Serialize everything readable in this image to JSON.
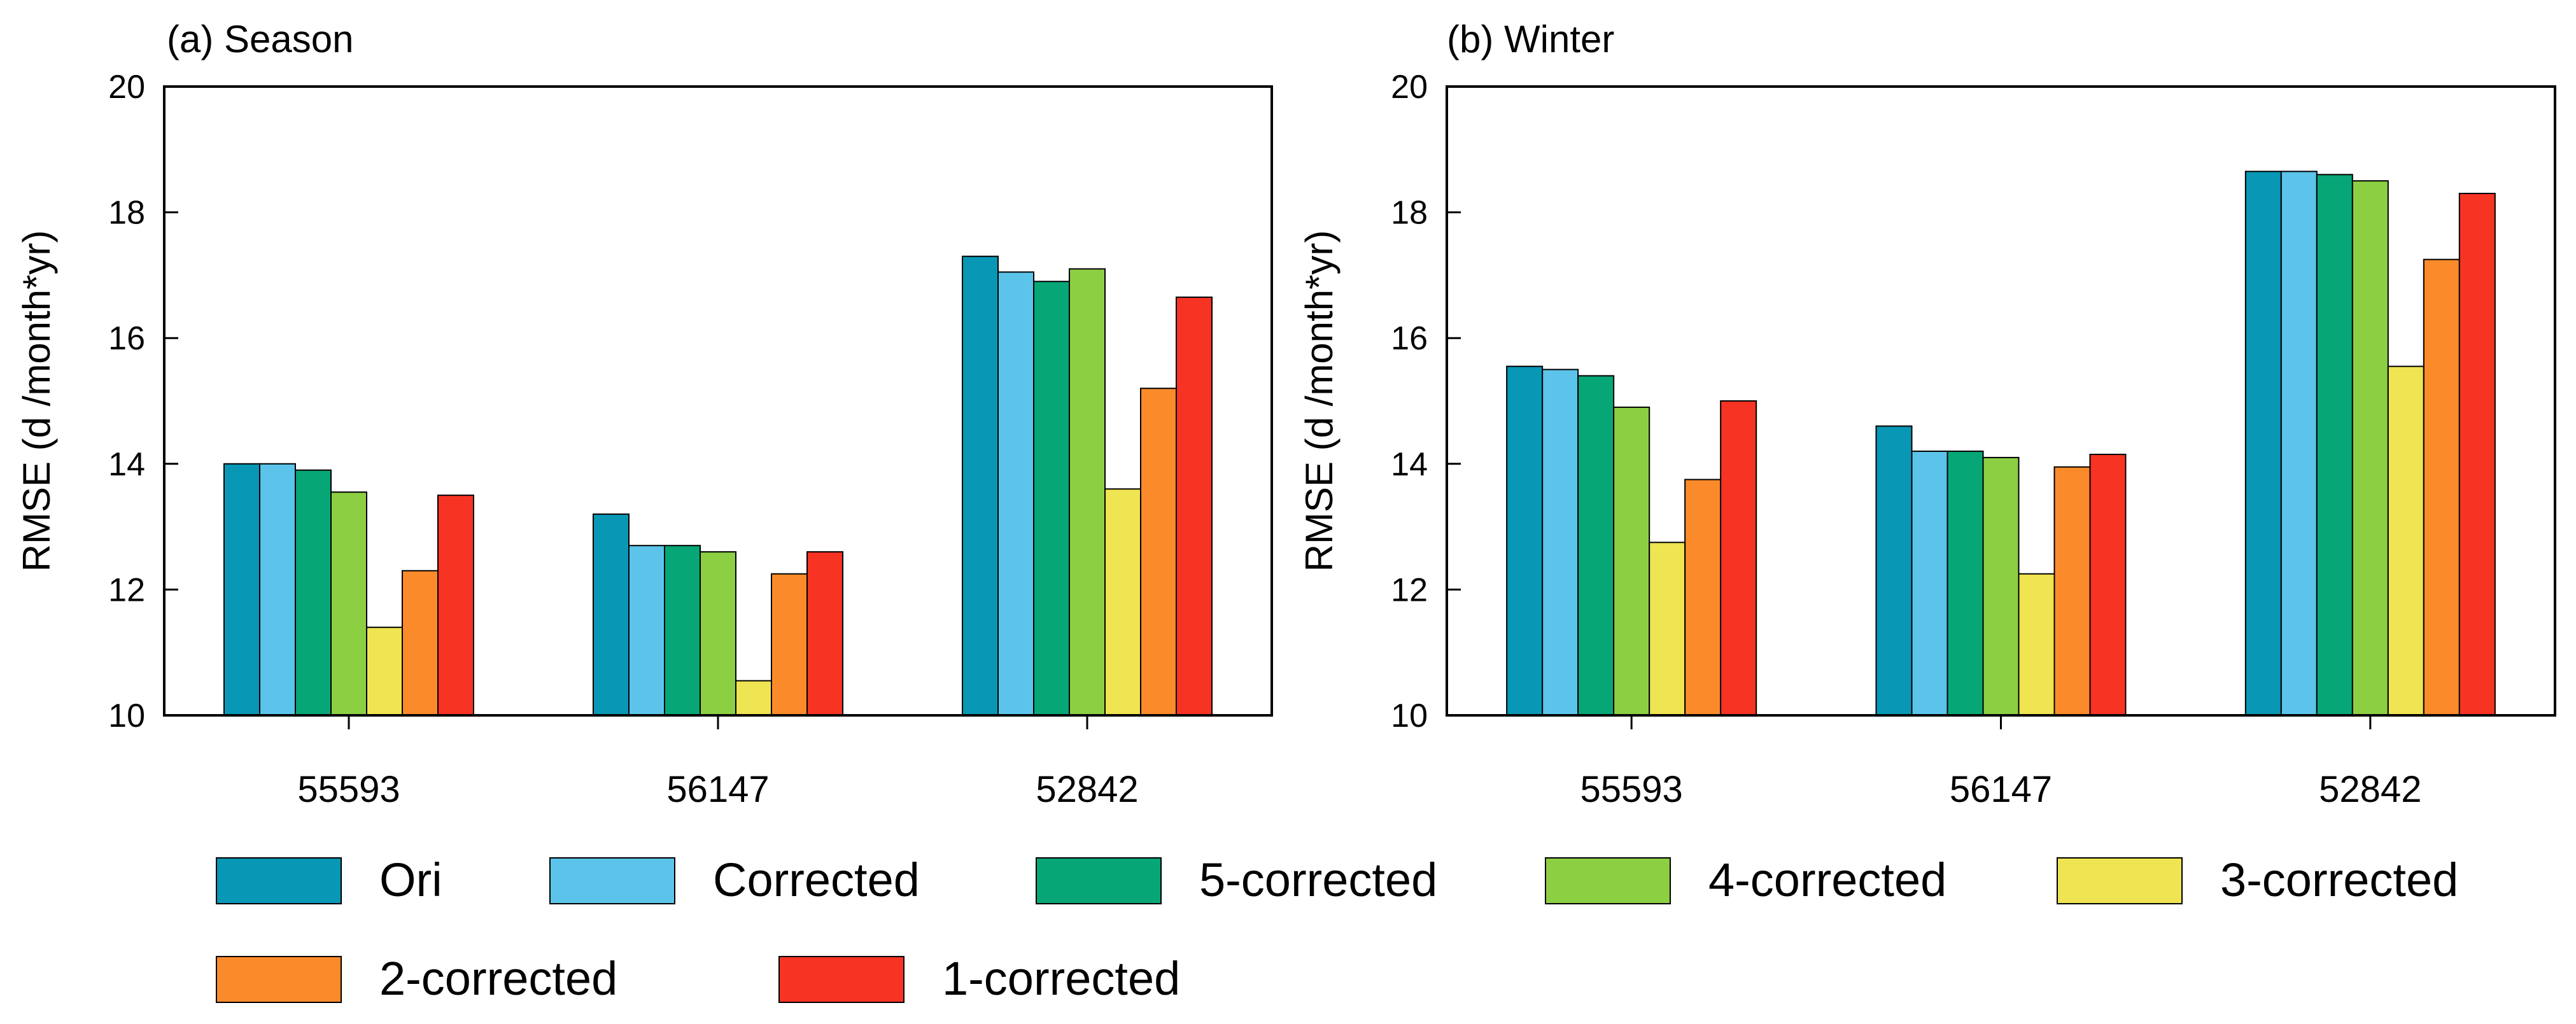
{
  "colors": {
    "Ori": "#0897b5",
    "Corrected": "#5cc4ea",
    "5-corrected": "#07a677",
    "4-corrected": "#8ccf43",
    "3-corrected": "#efe451",
    "2-corrected": "#fb8a2a",
    "1-corrected": "#f73323"
  },
  "legend": [
    "Ori",
    "Corrected",
    "5-corrected",
    "4-corrected",
    "3-corrected",
    "2-corrected",
    "1-corrected"
  ],
  "chart_data": [
    {
      "type": "bar",
      "title": "(a) Season",
      "ylabel": "RMSE (d /month*yr)",
      "xlabel": "",
      "ylim": [
        10,
        20
      ],
      "yticks": [
        10,
        12,
        14,
        16,
        18,
        20
      ],
      "categories": [
        "55593",
        "56147",
        "52842"
      ],
      "series": [
        {
          "name": "Ori",
          "values": [
            14.0,
            13.2,
            17.3
          ]
        },
        {
          "name": "Corrected",
          "values": [
            14.0,
            12.7,
            17.05
          ]
        },
        {
          "name": "5-corrected",
          "values": [
            13.9,
            12.7,
            16.9
          ]
        },
        {
          "name": "4-corrected",
          "values": [
            13.55,
            12.6,
            17.1
          ]
        },
        {
          "name": "3-corrected",
          "values": [
            11.4,
            10.55,
            13.6
          ]
        },
        {
          "name": "2-corrected",
          "values": [
            12.3,
            12.25,
            15.2
          ]
        },
        {
          "name": "1-corrected",
          "values": [
            13.5,
            12.6,
            16.65
          ]
        }
      ]
    },
    {
      "type": "bar",
      "title": "(b) Winter",
      "ylabel": "RMSE (d /month*yr)",
      "xlabel": "",
      "ylim": [
        10,
        20
      ],
      "yticks": [
        10,
        12,
        14,
        16,
        18,
        20
      ],
      "categories": [
        "55593",
        "56147",
        "52842"
      ],
      "series": [
        {
          "name": "Ori",
          "values": [
            15.55,
            14.6,
            18.65
          ]
        },
        {
          "name": "Corrected",
          "values": [
            15.5,
            14.2,
            18.65
          ]
        },
        {
          "name": "5-corrected",
          "values": [
            15.4,
            14.2,
            18.6
          ]
        },
        {
          "name": "4-corrected",
          "values": [
            14.9,
            14.1,
            18.5
          ]
        },
        {
          "name": "3-corrected",
          "values": [
            12.75,
            12.25,
            15.55
          ]
        },
        {
          "name": "2-corrected",
          "values": [
            13.75,
            13.95,
            17.25
          ]
        },
        {
          "name": "1-corrected",
          "values": [
            15.0,
            14.15,
            18.3
          ]
        }
      ]
    }
  ]
}
